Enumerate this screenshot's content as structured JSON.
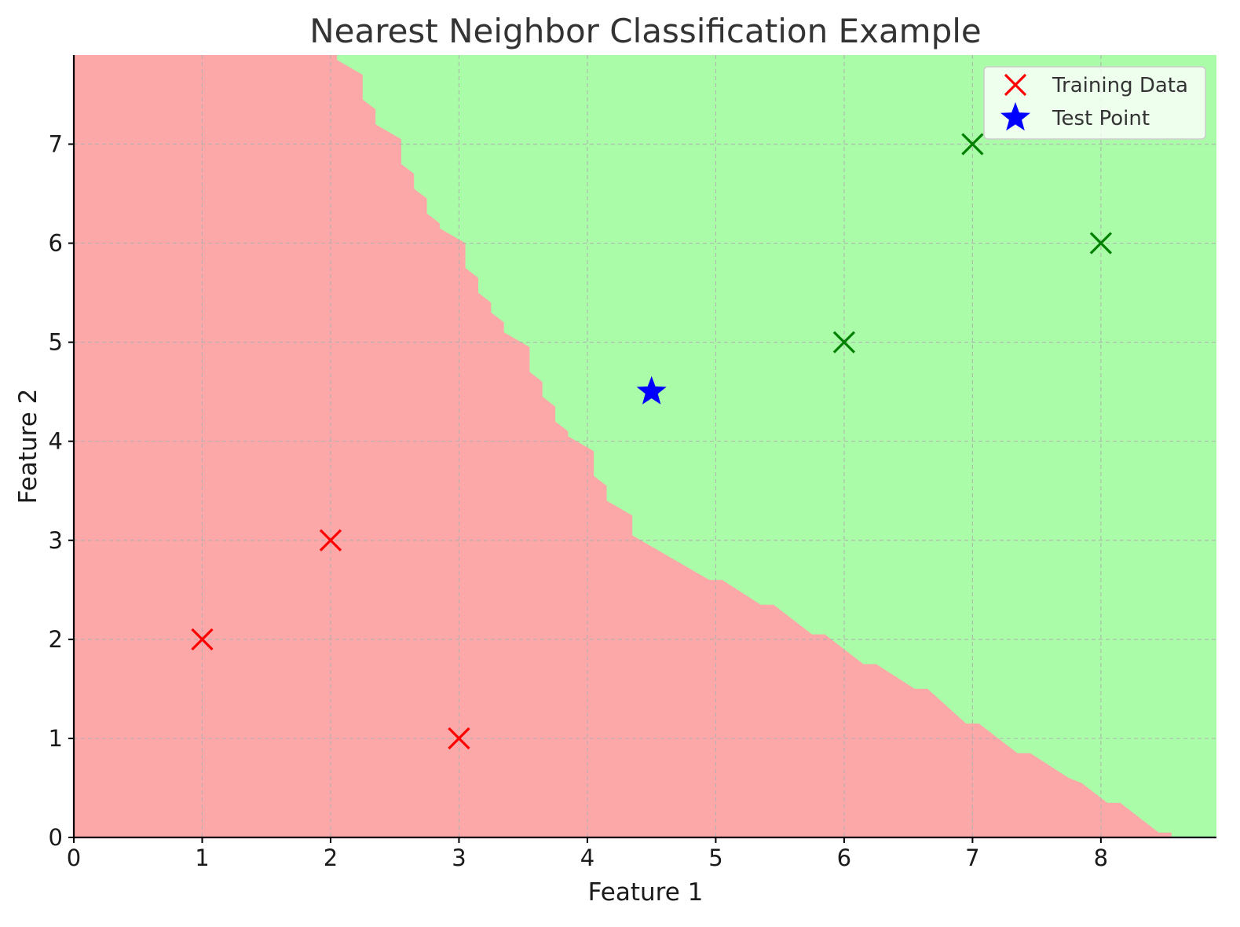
{
  "chart_data": {
    "type": "scatter",
    "title": "Nearest Neighbor Classification Example",
    "xlabel": "Feature 1",
    "ylabel": "Feature 2",
    "xlim": [
      0,
      8.9
    ],
    "ylim": [
      0,
      7.9
    ],
    "xticks": [
      "0",
      "1",
      "2",
      "3",
      "4",
      "5",
      "6",
      "7",
      "8"
    ],
    "yticks": [
      "0",
      "1",
      "2",
      "3",
      "4",
      "5",
      "6",
      "7"
    ],
    "grid": true,
    "legend_position": "top-right",
    "legend": [
      {
        "label": "Training Data",
        "marker": "x",
        "color": "#ff0000"
      },
      {
        "label": "Test Point",
        "marker": "star",
        "color": "#0000ff"
      }
    ],
    "background_regions": {
      "class_0_color": "#fca8a8",
      "class_1_color": "#aafca8",
      "decision_boundary": [
        [
          2.05,
          7.9
        ],
        [
          2.05,
          7.85
        ],
        [
          2.25,
          7.7
        ],
        [
          2.25,
          7.45
        ],
        [
          2.35,
          7.35
        ],
        [
          2.35,
          7.2
        ],
        [
          2.55,
          7.05
        ],
        [
          2.55,
          6.8
        ],
        [
          2.65,
          6.7
        ],
        [
          2.65,
          6.55
        ],
        [
          2.75,
          6.45
        ],
        [
          2.75,
          6.3
        ],
        [
          2.85,
          6.2
        ],
        [
          2.85,
          6.15
        ],
        [
          3.05,
          6.0
        ],
        [
          3.05,
          5.75
        ],
        [
          3.15,
          5.65
        ],
        [
          3.15,
          5.5
        ],
        [
          3.25,
          5.4
        ],
        [
          3.25,
          5.3
        ],
        [
          3.35,
          5.2
        ],
        [
          3.35,
          5.1
        ],
        [
          3.55,
          4.95
        ],
        [
          3.55,
          4.7
        ],
        [
          3.65,
          4.6
        ],
        [
          3.65,
          4.45
        ],
        [
          3.75,
          4.35
        ],
        [
          3.75,
          4.2
        ],
        [
          3.85,
          4.1
        ],
        [
          3.85,
          4.05
        ],
        [
          4.05,
          3.9
        ],
        [
          4.05,
          3.65
        ],
        [
          4.15,
          3.55
        ],
        [
          4.15,
          3.4
        ],
        [
          4.35,
          3.25
        ],
        [
          4.35,
          3.05
        ],
        [
          4.95,
          2.6
        ],
        [
          5.05,
          2.6
        ],
        [
          5.35,
          2.35
        ],
        [
          5.45,
          2.35
        ],
        [
          5.75,
          2.05
        ],
        [
          5.85,
          2.05
        ],
        [
          6.15,
          1.75
        ],
        [
          6.25,
          1.75
        ],
        [
          6.55,
          1.5
        ],
        [
          6.65,
          1.5
        ],
        [
          6.95,
          1.15
        ],
        [
          7.05,
          1.15
        ],
        [
          7.35,
          0.85
        ],
        [
          7.45,
          0.85
        ],
        [
          7.75,
          0.6
        ],
        [
          7.85,
          0.55
        ],
        [
          8.05,
          0.35
        ],
        [
          8.15,
          0.35
        ],
        [
          8.45,
          0.05
        ],
        [
          8.55,
          0.05
        ],
        [
          8.55,
          0.0
        ]
      ]
    },
    "series": [
      {
        "name": "Training Data",
        "marker": "x",
        "points": [
          {
            "x": 1,
            "y": 2,
            "color": "#ff0000"
          },
          {
            "x": 2,
            "y": 3,
            "color": "#ff0000"
          },
          {
            "x": 3,
            "y": 1,
            "color": "#ff0000"
          },
          {
            "x": 6,
            "y": 5,
            "color": "#008000"
          },
          {
            "x": 7,
            "y": 7,
            "color": "#008000"
          },
          {
            "x": 8,
            "y": 6,
            "color": "#008000"
          }
        ]
      },
      {
        "name": "Test Point",
        "marker": "star",
        "points": [
          {
            "x": 4.5,
            "y": 4.5,
            "color": "#0000ff"
          }
        ]
      }
    ]
  }
}
